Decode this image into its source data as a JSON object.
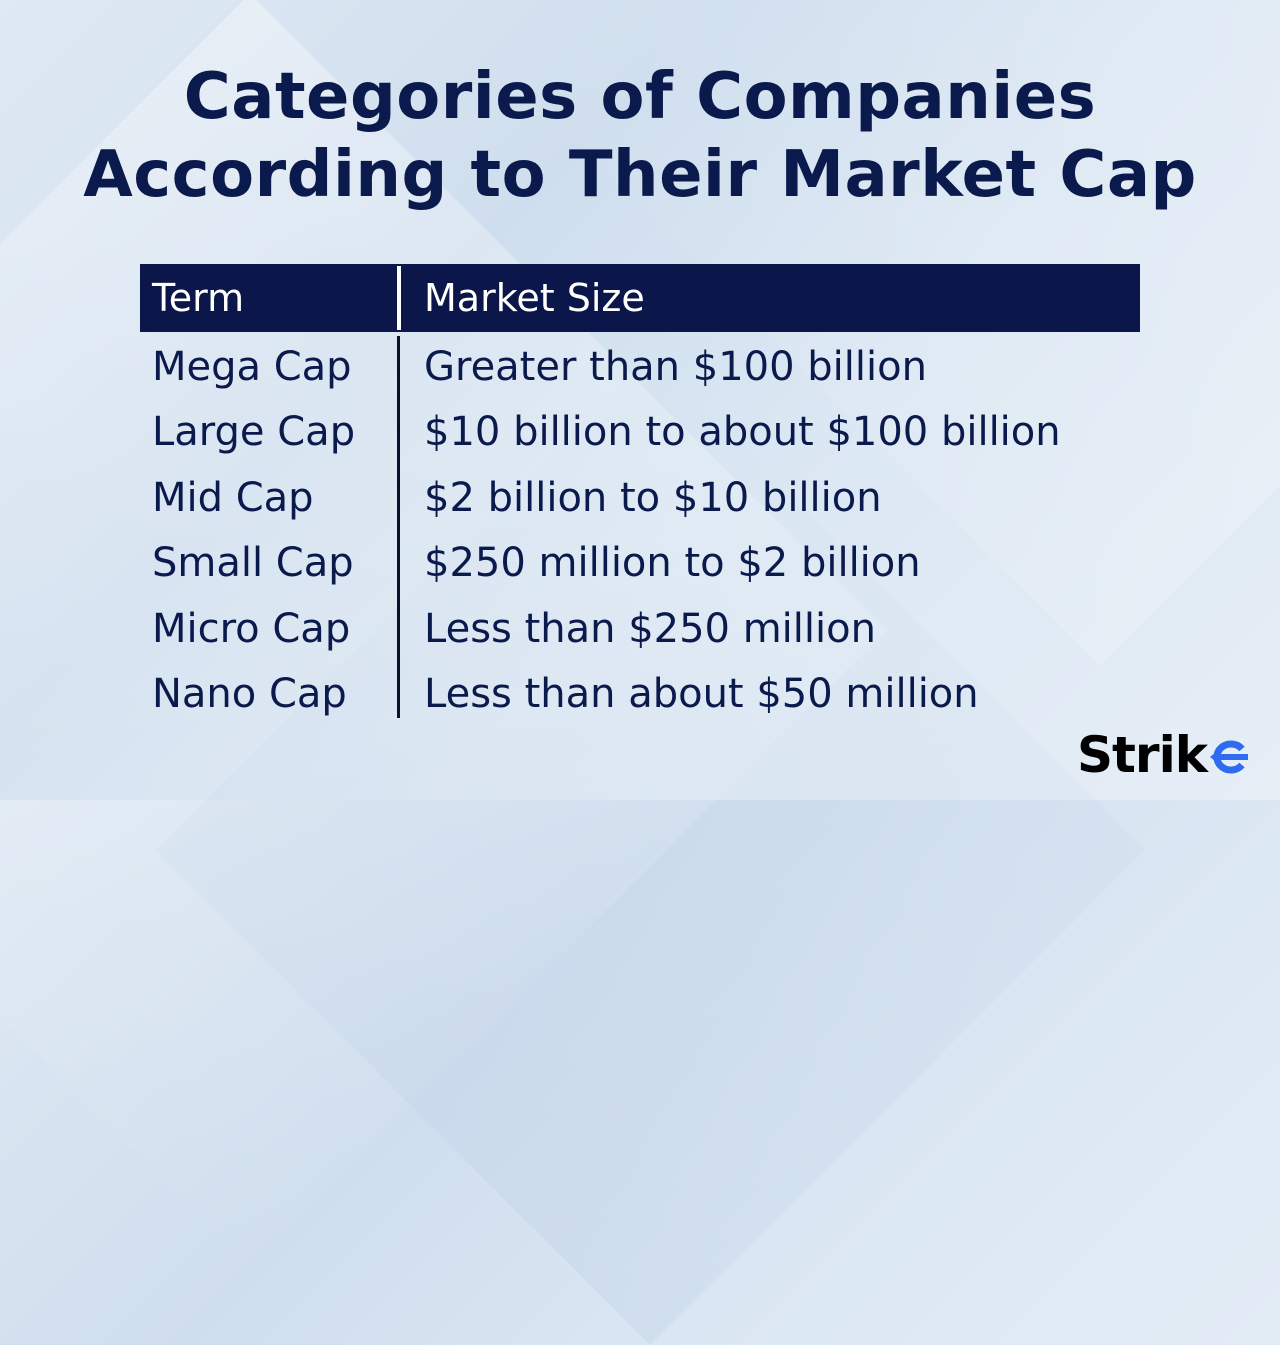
{
  "title": {
    "line1": "Categories of Companies",
    "line2": "According to Their Market Cap"
  },
  "table": {
    "headers": {
      "term": "Term",
      "size": "Market Size"
    },
    "rows": [
      {
        "term": "Mega Cap",
        "size": "Greater than $100 billion"
      },
      {
        "term": "Large Cap",
        "size": "$10 billion to about $100 billion"
      },
      {
        "term": "Mid Cap",
        "size": "$2 billion to $10 billion"
      },
      {
        "term": "Small Cap",
        "size": "$250 million to $2 billion"
      },
      {
        "term": "Micro Cap",
        "size": "Less than $250 million"
      },
      {
        "term": "Nano Cap",
        "size": "Less than about $50 million"
      }
    ]
  },
  "logo": {
    "text_main": "Stri",
    "text_k": "k",
    "text_e": "e",
    "accent_color": "#2f6bf0"
  },
  "colors": {
    "title": "#0b1a4d",
    "header_bg": "#0b174a",
    "header_text": "#ffffff",
    "body_text": "#0b1a4d"
  }
}
